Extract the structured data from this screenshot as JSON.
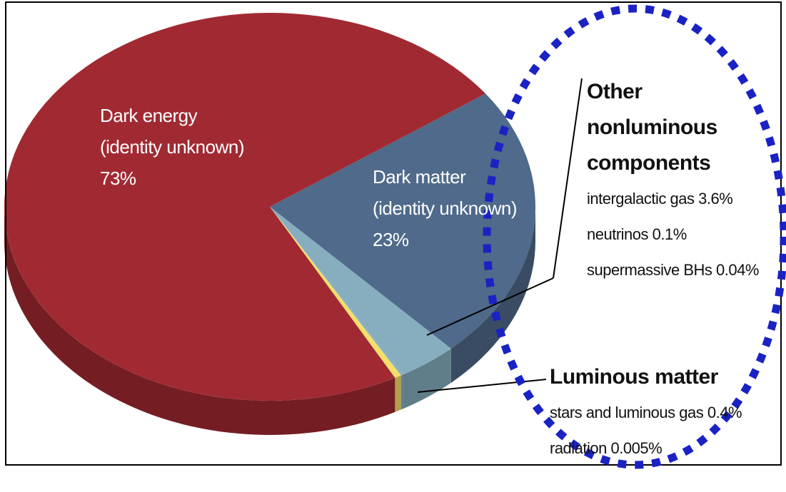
{
  "chart_data": {
    "type": "pie",
    "series": [
      {
        "name": "Dark energy",
        "subtitle": "(identity unknown)",
        "values": [
          73
        ],
        "value_labels": [
          "73%"
        ],
        "color": "#a12a32"
      },
      {
        "name": "Dark matter",
        "subtitle": "(identity unknown)",
        "values": [
          23
        ],
        "value_labels": [
          "23%"
        ],
        "color": "#4f6a8a"
      },
      {
        "name": "Other nonluminous components",
        "items": [
          "intergalactic gas",
          "neutrinos",
          "supermassive BHs"
        ],
        "values": [
          3.6,
          0.1,
          0.04
        ],
        "value_labels": [
          "3.6%",
          "0.1%",
          "0.04%"
        ],
        "color": "#86aebf"
      },
      {
        "name": "Luminous matter",
        "items": [
          "stars and luminous gas",
          "radiation"
        ],
        "values": [
          0.4,
          0.005
        ],
        "value_labels": [
          "0.4%",
          "0.005%"
        ],
        "color": "#f4e06a"
      }
    ]
  }
}
